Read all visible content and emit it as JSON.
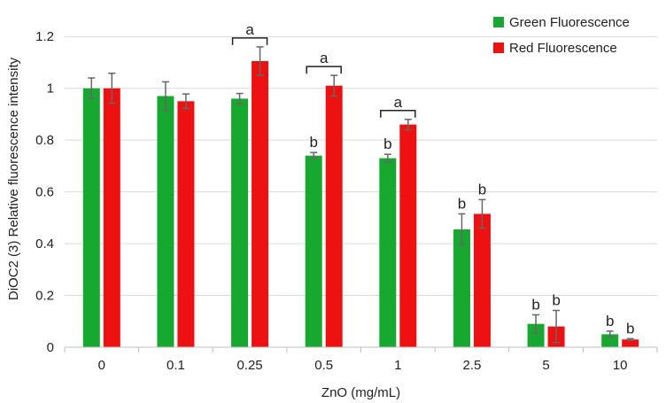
{
  "chart_data": {
    "type": "bar",
    "xlabel": "ZnO (mg/mL)",
    "ylabel": "DiOC2 (3) Relative fluorescence intensity",
    "categories": [
      "0",
      "0.1",
      "0.25",
      "0.5",
      "1",
      "2.5",
      "5",
      "10"
    ],
    "ylim": [
      0,
      1.3
    ],
    "yticks": [
      "0",
      "0.2",
      "0.4",
      "0.6",
      "0.8",
      "1",
      "1.2"
    ],
    "ytick_values": [
      0,
      0.2,
      0.4,
      0.6,
      0.8,
      1.0,
      1.2
    ],
    "grid": "horizontal",
    "legend_position": "top-right",
    "series": [
      {
        "name": "Green Fluorescence",
        "color": "#17a82f",
        "values": [
          1.0,
          0.97,
          0.96,
          0.74,
          0.73,
          0.455,
          0.09,
          0.05
        ],
        "errors": [
          0.04,
          0.055,
          0.02,
          0.012,
          0.015,
          0.06,
          0.035,
          0.012
        ],
        "labels": [
          "",
          "",
          "",
          "b",
          "b",
          "b",
          "b",
          "b"
        ]
      },
      {
        "name": "Red Fluorescence",
        "color": "#ee1111",
        "values": [
          1.0,
          0.95,
          1.105,
          1.01,
          0.86,
          0.515,
          0.08,
          0.03
        ],
        "errors": [
          0.058,
          0.028,
          0.055,
          0.04,
          0.02,
          0.055,
          0.062,
          0.003
        ],
        "labels": [
          "",
          "",
          "",
          "",
          "",
          "b",
          "b",
          "b"
        ]
      }
    ],
    "brackets": [
      {
        "category": "0.25",
        "label": "a"
      },
      {
        "category": "0.5",
        "label": "a"
      },
      {
        "category": "1",
        "label": "a"
      }
    ]
  }
}
